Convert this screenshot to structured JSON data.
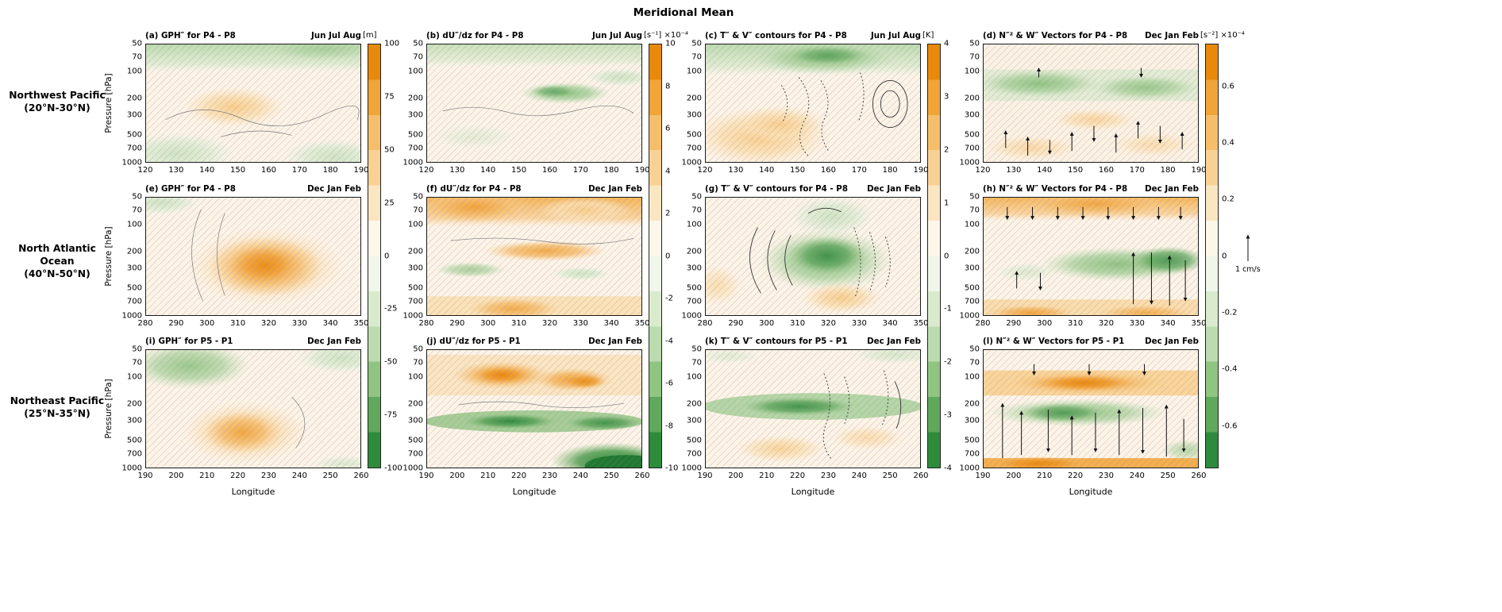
{
  "figure_title": "Meridional Mean",
  "axis": {
    "pressure_label": "Pressure [hPa]",
    "longitude_label": "Longitude"
  },
  "regions": [
    {
      "line1": "Northwest Pacific",
      "line2": "(20°N-30°N)"
    },
    {
      "line1": "North Atlantic Ocean",
      "line2": "(40°N-50°N)"
    },
    {
      "line1": "Northeast Pacific",
      "line2": "(25°N-35°N)"
    }
  ],
  "yticks": [
    {
      "label": "50",
      "pos": 0
    },
    {
      "label": "70",
      "pos": 11.2
    },
    {
      "label": "100",
      "pos": 23.1
    },
    {
      "label": "200",
      "pos": 46.3
    },
    {
      "label": "300",
      "pos": 59.8
    },
    {
      "label": "500",
      "pos": 76.9
    },
    {
      "label": "700",
      "pos": 88.1
    },
    {
      "label": "1000",
      "pos": 100
    }
  ],
  "rows": [
    {
      "xticks": [
        {
          "label": "120",
          "pos": 0
        },
        {
          "label": "130",
          "pos": 14.29
        },
        {
          "label": "140",
          "pos": 28.57
        },
        {
          "label": "150",
          "pos": 42.86
        },
        {
          "label": "160",
          "pos": 57.14
        },
        {
          "label": "170",
          "pos": 71.43
        },
        {
          "label": "180",
          "pos": 85.71
        },
        {
          "label": "190",
          "pos": 100
        }
      ]
    },
    {
      "xticks": [
        {
          "label": "280",
          "pos": 0
        },
        {
          "label": "290",
          "pos": 14.29
        },
        {
          "label": "300",
          "pos": 28.57
        },
        {
          "label": "310",
          "pos": 42.86
        },
        {
          "label": "320",
          "pos": 57.14
        },
        {
          "label": "330",
          "pos": 71.43
        },
        {
          "label": "340",
          "pos": 85.71
        },
        {
          "label": "350",
          "pos": 100
        }
      ]
    },
    {
      "xticks": [
        {
          "label": "190",
          "pos": 0
        },
        {
          "label": "200",
          "pos": 14.29
        },
        {
          "label": "210",
          "pos": 28.57
        },
        {
          "label": "220",
          "pos": 42.86
        },
        {
          "label": "230",
          "pos": 57.14
        },
        {
          "label": "240",
          "pos": 71.43
        },
        {
          "label": "250",
          "pos": 85.71
        },
        {
          "label": "260",
          "pos": 100
        }
      ]
    }
  ],
  "panels": [
    {
      "title": "(a) GPH″ for P4 - P8",
      "season": "Jun Jul Aug"
    },
    {
      "title": "(b) dU″/dz for P4 - P8",
      "season": "Jun Jul Aug"
    },
    {
      "title": "(c) T″ & V″ contours for P4 - P8",
      "season": "Jun Jul Aug"
    },
    {
      "title": "(d) N″² & W″ Vectors for P4 - P8",
      "season": "Dec Jan Feb"
    },
    {
      "title": "(e) GPH″ for P4 - P8",
      "season": "Dec Jan Feb"
    },
    {
      "title": "(f) dU″/dz for P4 - P8",
      "season": "Dec Jan Feb"
    },
    {
      "title": "(g) T″ & V″ contours for P4 - P8",
      "season": "Dec Jan Feb"
    },
    {
      "title": "(h) N″² & W″ Vectors for P4 - P8",
      "season": "Dec Jan Feb"
    },
    {
      "title": "(i) GPH″ for P5 - P1",
      "season": "Dec Jan Feb"
    },
    {
      "title": "(j) dU″/dz for P5 - P1",
      "season": "Dec Jan Feb"
    },
    {
      "title": "(k) T″ & V″ contours for P5 - P1",
      "season": "Dec Jan Feb"
    },
    {
      "title": "(l) N″² & W″ Vectors for P5 - P1",
      "season": "Dec Jan Feb"
    }
  ],
  "colorbars": [
    {
      "unit": "[m]",
      "ticks": [
        {
          "label": "100",
          "pos": 0
        },
        {
          "label": "75",
          "pos": 12.5
        },
        {
          "label": "50",
          "pos": 25
        },
        {
          "label": "25",
          "pos": 37.5
        },
        {
          "label": "0",
          "pos": 50
        },
        {
          "label": "-25",
          "pos": 62.5
        },
        {
          "label": "-50",
          "pos": 75
        },
        {
          "label": "-75",
          "pos": 87.5
        },
        {
          "label": "-100",
          "pos": 100
        }
      ]
    },
    {
      "unit": "[s⁻¹] ×10⁻⁴",
      "ticks": [
        {
          "label": "10",
          "pos": 0
        },
        {
          "label": "8",
          "pos": 10
        },
        {
          "label": "6",
          "pos": 20
        },
        {
          "label": "4",
          "pos": 30
        },
        {
          "label": "2",
          "pos": 40
        },
        {
          "label": "0",
          "pos": 50
        },
        {
          "label": "-2",
          "pos": 60
        },
        {
          "label": "-4",
          "pos": 70
        },
        {
          "label": "-6",
          "pos": 80
        },
        {
          "label": "-8",
          "pos": 90
        },
        {
          "label": "-10",
          "pos": 100
        }
      ]
    },
    {
      "unit": "[K]",
      "ticks": [
        {
          "label": "4",
          "pos": 0
        },
        {
          "label": "3",
          "pos": 12.5
        },
        {
          "label": "2",
          "pos": 25
        },
        {
          "label": "1",
          "pos": 37.5
        },
        {
          "label": "0",
          "pos": 50
        },
        {
          "label": "-1",
          "pos": 62.5
        },
        {
          "label": "-2",
          "pos": 75
        },
        {
          "label": "-3",
          "pos": 87.5
        },
        {
          "label": "-4",
          "pos": 100
        }
      ]
    },
    {
      "unit": "[s⁻²] ×10⁻⁴",
      "vector_scale": "1 cm/s",
      "ticks": [
        {
          "label": "0.6",
          "pos": 10
        },
        {
          "label": "0.4",
          "pos": 23.33
        },
        {
          "label": "0.2",
          "pos": 36.67
        },
        {
          "label": "0",
          "pos": 50
        },
        {
          "label": "-0.2",
          "pos": 63.33
        },
        {
          "label": "-0.4",
          "pos": 76.67
        },
        {
          "label": "-0.6",
          "pos": 90
        }
      ]
    }
  ],
  "palette": {
    "positive_max": "#E8890C",
    "positive_mid": "#F5BE6B",
    "near_zero": "#FDF7E9",
    "negative_mid": "#8FC481",
    "negative_max": "#2E8B3C",
    "hatch": "#B66FB6",
    "contour": "#333333"
  },
  "chart_data": {
    "type": "filled-contour-grid",
    "title": "Meridional Mean",
    "grid": {
      "rows": 3,
      "cols": 4
    },
    "y_axis": {
      "label": "Pressure [hPa]",
      "scale": "log",
      "ticks": [
        50,
        70,
        100,
        200,
        300,
        500,
        700,
        1000
      ],
      "direction": "down"
    },
    "x_axis": {
      "label": "Longitude"
    },
    "rows": [
      {
        "region": "Northwest Pacific (20°N-30°N)",
        "x_range": [
          120,
          190
        ]
      },
      {
        "region": "North Atlantic Ocean (40°N-50°N)",
        "x_range": [
          280,
          350
        ]
      },
      {
        "region": "Northeast Pacific (25°N-35°N)",
        "x_range": [
          190,
          260
        ]
      }
    ],
    "columns": [
      {
        "variable": "GPH″",
        "units": "m",
        "range": [
          -100,
          100
        ],
        "ticks": [
          100,
          75,
          50,
          25,
          0,
          -25,
          -50,
          -75,
          -100
        ]
      },
      {
        "variable": "dU″/dz",
        "units": "s⁻¹ ×10⁻⁴",
        "range": [
          -10,
          10
        ],
        "ticks": [
          10,
          8,
          6,
          4,
          2,
          0,
          -2,
          -4,
          -6,
          -8,
          -10
        ]
      },
      {
        "variable": "T″ & V″ contours",
        "units": "K",
        "range": [
          -4,
          4
        ],
        "ticks": [
          4,
          3,
          2,
          1,
          0,
          -1,
          -2,
          -3,
          -4
        ]
      },
      {
        "variable": "N″² & W″ vectors",
        "units": "s⁻² ×10⁻⁴",
        "ticks": [
          0.6,
          0.4,
          0.2,
          0,
          -0.2,
          -0.4,
          -0.6
        ],
        "vector_scale": "1 cm/s"
      }
    ],
    "overlays": "magenta diagonal hatching over most panel areas; thin black contour lines; dashed/dotted black contours = negative V″ (column 3); vertical black arrows = W″ vectors (column 4)",
    "panels": [
      {
        "id": "a",
        "season": "Jun Jul Aug",
        "period": "P4 - P8",
        "features": [
          {
            "where": "50-100 hPa, 120-190°E band",
            "value": -25
          },
          {
            "where": "200-300 hPa, 140-160°E",
            "value": 15
          },
          {
            "where": "700-1000 hPa, 120-145°E",
            "value": -20
          },
          {
            "where": "700-1000 hPa, 175-190°E",
            "value": -20
          }
        ]
      },
      {
        "id": "b",
        "season": "Jun Jul Aug",
        "period": "P4 - P8",
        "features": [
          {
            "where": "50-100 hPa band",
            "value": -2
          },
          {
            "where": "150-200 hPa, 155-175°E",
            "value": -4
          },
          {
            "where": "remainder of panel",
            "value": 0
          }
        ]
      },
      {
        "id": "c",
        "season": "Jun Jul Aug",
        "period": "P4 - P8",
        "features": [
          {
            "where": "70-150 hPa, 130-180°E",
            "value": -2.5
          },
          {
            "where": "300-1000 hPa, 120-155°E",
            "value": 1
          },
          {
            "note": "dashed V″ contour cells 140-190°E between 150 and 500 hPa; closed solid contours near 180-190°E, 150-300 hPa"
          }
        ]
      },
      {
        "id": "d",
        "season": "Dec Jan Feb",
        "period": "P4 - P8",
        "features": [
          {
            "where": "100-200 hPa layer across panel",
            "value": -0.3
          },
          {
            "where": "300-500 hPa, 140-170°E",
            "value": 0.15
          },
          {
            "where": "700-1000 hPa patches",
            "value": 0.15
          },
          {
            "note": "weak mixed up/down W″ arrows below 300 hPa"
          }
        ]
      },
      {
        "id": "e",
        "season": "Dec Jan Feb",
        "period": "P4 - P8",
        "features": [
          {
            "where": "200-400 hPa, 310-330°E core",
            "value": 75
          },
          {
            "where": "50-70 hPa, 280-290°E",
            "value": -15
          }
        ]
      },
      {
        "id": "f",
        "season": "Dec Jan Feb",
        "period": "P4 - P8",
        "features": [
          {
            "where": "50-100 hPa, 280-310°E",
            "value": 5
          },
          {
            "where": "200 hPa, 300-335°E",
            "value": 4
          },
          {
            "where": "300 hPa, 285-300°E",
            "value": -2
          },
          {
            "where": "700-1000 hPa, 290-320°E",
            "value": 3
          }
        ]
      },
      {
        "id": "g",
        "season": "Dec Jan Feb",
        "period": "P4 - P8",
        "features": [
          {
            "where": "150-300 hPa, 300-330°E core",
            "value": -3
          },
          {
            "where": "400-700 hPa, 315-330°E",
            "value": 1.5
          },
          {
            "note": "dense solid V″ contours 285-320°E, dashed V″ contours 320-345°E"
          }
        ]
      },
      {
        "id": "h",
        "season": "Dec Jan Feb",
        "period": "P4 - P8",
        "features": [
          {
            "where": "50-100 hPa band",
            "value": 0.3
          },
          {
            "where": "200-300 hPa, 300-350°E (deepens eastward)",
            "value": -0.45
          },
          {
            "where": "900-1000 hPa band",
            "value": 0.4
          },
          {
            "note": "strong alternating up/down W″ arrows 310-350°E through troposphere"
          }
        ]
      },
      {
        "id": "i",
        "season": "Dec Jan Feb",
        "period": "P5 - P1",
        "features": [
          {
            "where": "50-150 hPa, 190-215°E",
            "value": -30
          },
          {
            "where": "50-100 hPa, 245-260°E",
            "value": -20
          },
          {
            "where": "300-500 hPa, 210-240°E core",
            "value": 50
          }
        ]
      },
      {
        "id": "j",
        "season": "Dec Jan Feb",
        "period": "P5 - P1",
        "features": [
          {
            "where": "70-150 hPa, 195-250°E cores",
            "value": 8
          },
          {
            "where": "300 hPa band, 190-260°E",
            "value": -6
          },
          {
            "where": "500-1000 hPa, 225-260°E",
            "value": -10
          },
          {
            "where": "700-1000 hPa, 190-225°E",
            "value": 0
          }
        ]
      },
      {
        "id": "k",
        "season": "Dec Jan Feb",
        "period": "P5 - P1",
        "features": [
          {
            "where": "150-300 hPa band, 190-260°E",
            "value": -2.5
          },
          {
            "where": "500-1000 hPa, 195-235°E",
            "value": 0.8
          },
          {
            "note": "dotted V″ contours 215-260°E mid-levels"
          }
        ]
      },
      {
        "id": "l",
        "season": "Dec Jan Feb",
        "period": "P5 - P1",
        "features": [
          {
            "where": "100-150 hPa band, 195-255°E",
            "value": 0.6
          },
          {
            "where": "200-300 hPa band, 190-250°E",
            "value": -0.4
          },
          {
            "where": "950-1000 hPa band",
            "value": 0.6
          },
          {
            "note": "tall W″ arrows (up and down) spanning 1000-200 hPa across panel"
          }
        ]
      }
    ]
  }
}
